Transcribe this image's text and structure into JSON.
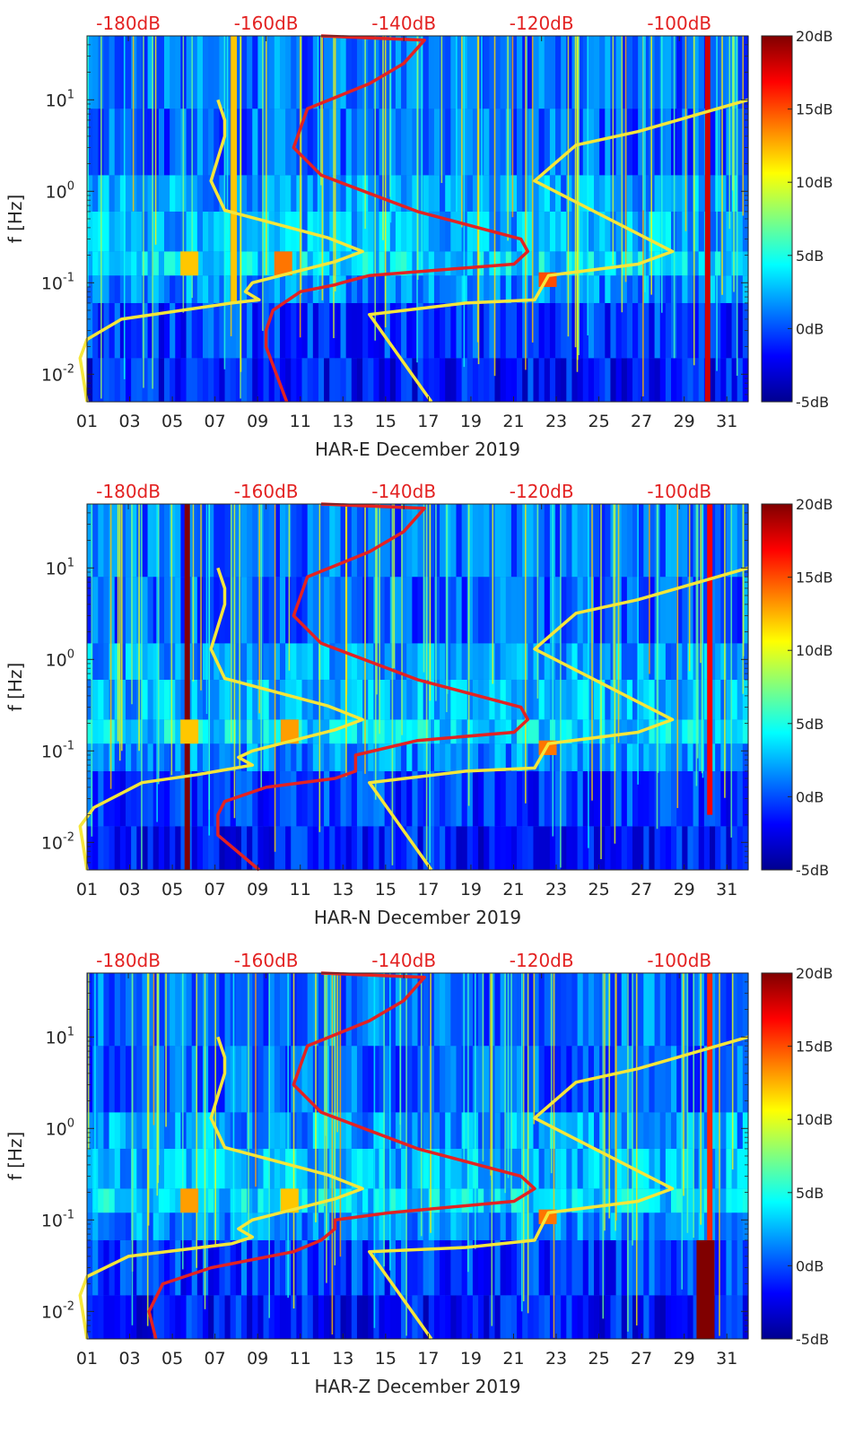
{
  "chart_data": [
    {
      "type": "heatmap",
      "title": "",
      "xlabel": "HAR-E December 2019",
      "ylabel": "f [Hz]",
      "x_ticks": [
        "01",
        "03",
        "05",
        "07",
        "09",
        "11",
        "13",
        "15",
        "17",
        "19",
        "21",
        "23",
        "25",
        "27",
        "29",
        "31"
      ],
      "x_range_days": [
        1,
        32
      ],
      "y_scale": "log",
      "y_range_hz": [
        0.005,
        50
      ],
      "y_ticks": [
        {
          "value": 0.01,
          "base": "10",
          "exp": "-2"
        },
        {
          "value": 0.1,
          "base": "10",
          "exp": "-1"
        },
        {
          "value": 1,
          "base": "10",
          "exp": "0"
        },
        {
          "value": 10,
          "base": "10",
          "exp": "1"
        }
      ],
      "top_axis": {
        "labels": [
          "-180dB",
          "-160dB",
          "-140dB",
          "-120dB",
          "-100dB"
        ],
        "values_db": [
          -180,
          -160,
          -140,
          -120,
          -100
        ],
        "range_db": [
          -186,
          -90
        ]
      },
      "colorbar": {
        "labels": [
          "20dB",
          "15dB",
          "10dB",
          "5dB",
          "0dB",
          "-5dB"
        ],
        "range_db": [
          -5,
          20
        ]
      },
      "heatmap_hotspots": [
        {
          "day": 30.1,
          "f_range": [
            0.005,
            50
          ],
          "db": 18
        },
        {
          "day": 7.9,
          "f_range": [
            0.06,
            50
          ],
          "db": 12
        },
        {
          "day": 5.8,
          "f_range": [
            0.12,
            0.22
          ],
          "db": 12
        },
        {
          "day": 10.2,
          "f_range": [
            0.12,
            0.22
          ],
          "db": 14
        },
        {
          "day": 22.6,
          "f_range": [
            0.09,
            0.13
          ],
          "db": 15
        }
      ],
      "series": [
        {
          "name": "yellow curve",
          "color": "#f5e63a",
          "points_db_hz": [
            [
              -186,
              0.005
            ],
            [
              -187,
              0.015
            ],
            [
              -186,
              0.024
            ],
            [
              -181,
              0.04
            ],
            [
              -165,
              0.06
            ],
            [
              -161,
              0.065
            ],
            [
              -163,
              0.08
            ],
            [
              -162,
              0.1
            ],
            [
              -150,
              0.17
            ],
            [
              -146,
              0.22
            ],
            [
              -151,
              0.31
            ],
            [
              -166,
              0.62
            ],
            [
              -168,
              1.3
            ],
            [
              -166,
              4
            ],
            [
              -166,
              6
            ],
            [
              -167,
              10
            ]
          ]
        },
        {
          "name": "yellow curve",
          "color": "#f5e63a",
          "points_db_hz": [
            [
              -136,
              0.005
            ],
            [
              -145,
              0.045
            ],
            [
              -131,
              0.06
            ],
            [
              -121,
              0.065
            ],
            [
              -119,
              0.12
            ],
            [
              -106,
              0.16
            ],
            [
              -101,
              0.22
            ],
            [
              -121,
              1.3
            ],
            [
              -115,
              3.2
            ],
            [
              -106,
              4.5
            ],
            [
              -90,
              10
            ]
          ]
        },
        {
          "name": "red curve",
          "color": "#e32222",
          "points_db_hz": [
            [
              -157,
              0.005
            ],
            [
              -160,
              0.02
            ],
            [
              -160,
              0.03
            ],
            [
              -159,
              0.05
            ],
            [
              -155,
              0.08
            ],
            [
              -150,
              0.095
            ],
            [
              -149,
              0.1
            ],
            [
              -145,
              0.12
            ],
            [
              -124,
              0.16
            ],
            [
              -122,
              0.22
            ],
            [
              -123,
              0.3
            ],
            [
              -138,
              0.6
            ],
            [
              -152,
              1.5
            ],
            [
              -156,
              3
            ],
            [
              -154,
              8
            ],
            [
              -145,
              15
            ],
            [
              -140,
              25
            ],
            [
              -137,
              45
            ],
            [
              -152,
              50
            ]
          ]
        }
      ]
    },
    {
      "type": "heatmap",
      "title": "",
      "xlabel": "HAR-N December 2019",
      "ylabel": "f [Hz]",
      "x_ticks": [
        "01",
        "03",
        "05",
        "07",
        "09",
        "11",
        "13",
        "15",
        "17",
        "19",
        "21",
        "23",
        "25",
        "27",
        "29",
        "31"
      ],
      "x_range_days": [
        1,
        32
      ],
      "y_scale": "log",
      "y_range_hz": [
        0.005,
        50
      ],
      "y_ticks": [
        {
          "value": 0.01,
          "base": "10",
          "exp": "-2"
        },
        {
          "value": 0.1,
          "base": "10",
          "exp": "-1"
        },
        {
          "value": 1,
          "base": "10",
          "exp": "0"
        },
        {
          "value": 10,
          "base": "10",
          "exp": "1"
        }
      ],
      "top_axis": {
        "labels": [
          "-180dB",
          "-160dB",
          "-140dB",
          "-120dB",
          "-100dB"
        ],
        "values_db": [
          -180,
          -160,
          -140,
          -120,
          -100
        ],
        "range_db": [
          -186,
          -90
        ]
      },
      "colorbar": {
        "labels": [
          "20dB",
          "15dB",
          "10dB",
          "5dB",
          "0dB",
          "-5dB"
        ],
        "range_db": [
          -5,
          20
        ]
      },
      "heatmap_hotspots": [
        {
          "day": 5.7,
          "f_range": [
            0.005,
            50
          ],
          "db": 20
        },
        {
          "day": 30.2,
          "f_range": [
            0.02,
            50
          ],
          "db": 17
        },
        {
          "day": 5.8,
          "f_range": [
            0.12,
            0.22
          ],
          "db": 12
        },
        {
          "day": 10.5,
          "f_range": [
            0.12,
            0.22
          ],
          "db": 13
        },
        {
          "day": 22.6,
          "f_range": [
            0.09,
            0.13
          ],
          "db": 14
        }
      ],
      "series": [
        {
          "name": "yellow curve",
          "color": "#f5e63a",
          "points_db_hz": [
            [
              -186,
              0.005
            ],
            [
              -187,
              0.015
            ],
            [
              -185,
              0.024
            ],
            [
              -178,
              0.045
            ],
            [
              -170,
              0.055
            ],
            [
              -162,
              0.07
            ],
            [
              -164,
              0.085
            ],
            [
              -162,
              0.1
            ],
            [
              -150,
              0.17
            ],
            [
              -146,
              0.22
            ],
            [
              -151,
              0.31
            ],
            [
              -166,
              0.62
            ],
            [
              -168,
              1.3
            ],
            [
              -166,
              4
            ],
            [
              -166,
              6
            ],
            [
              -167,
              10
            ]
          ]
        },
        {
          "name": "yellow curve",
          "color": "#f5e63a",
          "points_db_hz": [
            [
              -136,
              0.005
            ],
            [
              -145,
              0.045
            ],
            [
              -131,
              0.06
            ],
            [
              -121,
              0.065
            ],
            [
              -119,
              0.12
            ],
            [
              -106,
              0.16
            ],
            [
              -101,
              0.22
            ],
            [
              -121,
              1.3
            ],
            [
              -115,
              3.2
            ],
            [
              -106,
              4.5
            ],
            [
              -90,
              10
            ]
          ]
        },
        {
          "name": "red curve",
          "color": "#e32222",
          "points_db_hz": [
            [
              -161,
              0.005
            ],
            [
              -167,
              0.012
            ],
            [
              -167,
              0.02
            ],
            [
              -166,
              0.028
            ],
            [
              -160,
              0.04
            ],
            [
              -150,
              0.05
            ],
            [
              -147,
              0.06
            ],
            [
              -147,
              0.09
            ],
            [
              -138,
              0.13
            ],
            [
              -124,
              0.16
            ],
            [
              -122,
              0.22
            ],
            [
              -123,
              0.3
            ],
            [
              -138,
              0.6
            ],
            [
              -152,
              1.5
            ],
            [
              -156,
              3
            ],
            [
              -154,
              8
            ],
            [
              -145,
              15
            ],
            [
              -140,
              25
            ],
            [
              -137,
              45
            ],
            [
              -152,
              50
            ]
          ]
        }
      ]
    },
    {
      "type": "heatmap",
      "title": "",
      "xlabel": "HAR-Z December 2019",
      "ylabel": "f [Hz]",
      "x_ticks": [
        "01",
        "03",
        "05",
        "07",
        "09",
        "11",
        "13",
        "15",
        "17",
        "19",
        "21",
        "23",
        "25",
        "27",
        "29",
        "31"
      ],
      "x_range_days": [
        1,
        32
      ],
      "y_scale": "log",
      "y_range_hz": [
        0.005,
        50
      ],
      "y_ticks": [
        {
          "value": 0.01,
          "base": "10",
          "exp": "-2"
        },
        {
          "value": 0.1,
          "base": "10",
          "exp": "-1"
        },
        {
          "value": 1,
          "base": "10",
          "exp": "0"
        },
        {
          "value": 10,
          "base": "10",
          "exp": "1"
        }
      ],
      "top_axis": {
        "labels": [
          "-180dB",
          "-160dB",
          "-140dB",
          "-120dB",
          "-100dB"
        ],
        "values_db": [
          -180,
          -160,
          -140,
          -120,
          -100
        ],
        "range_db": [
          -186,
          -90
        ]
      },
      "colorbar": {
        "labels": [
          "20dB",
          "15dB",
          "10dB",
          "5dB",
          "0dB",
          "-5dB"
        ],
        "range_db": [
          -5,
          20
        ]
      },
      "heatmap_hotspots": [
        {
          "day": 30.0,
          "f_range": [
            0.005,
            0.06
          ],
          "db": 20
        },
        {
          "day": 30.2,
          "f_range": [
            0.06,
            50
          ],
          "db": 16
        },
        {
          "day": 5.8,
          "f_range": [
            0.12,
            0.22
          ],
          "db": 13
        },
        {
          "day": 10.5,
          "f_range": [
            0.12,
            0.22
          ],
          "db": 12
        },
        {
          "day": 22.6,
          "f_range": [
            0.09,
            0.13
          ],
          "db": 14
        }
      ],
      "series": [
        {
          "name": "yellow curve",
          "color": "#f5e63a",
          "points_db_hz": [
            [
              -186,
              0.005
            ],
            [
              -187,
              0.015
            ],
            [
              -186,
              0.024
            ],
            [
              -180,
              0.04
            ],
            [
              -165,
              0.055
            ],
            [
              -162,
              0.065
            ],
            [
              -164,
              0.08
            ],
            [
              -162,
              0.1
            ],
            [
              -150,
              0.17
            ],
            [
              -146,
              0.22
            ],
            [
              -151,
              0.31
            ],
            [
              -166,
              0.62
            ],
            [
              -168,
              1.3
            ],
            [
              -166,
              4
            ],
            [
              -166,
              6
            ],
            [
              -167,
              10
            ]
          ]
        },
        {
          "name": "yellow curve",
          "color": "#f5e63a",
          "points_db_hz": [
            [
              -136,
              0.005
            ],
            [
              -145,
              0.045
            ],
            [
              -131,
              0.05
            ],
            [
              -121,
              0.06
            ],
            [
              -119,
              0.12
            ],
            [
              -106,
              0.16
            ],
            [
              -101,
              0.22
            ],
            [
              -121,
              1.3
            ],
            [
              -115,
              3.2
            ],
            [
              -106,
              4.5
            ],
            [
              -90,
              10
            ]
          ]
        },
        {
          "name": "red curve",
          "color": "#e32222",
          "points_db_hz": [
            [
              -176,
              0.005
            ],
            [
              -177,
              0.01
            ],
            [
              -175,
              0.02
            ],
            [
              -168,
              0.03
            ],
            [
              -156,
              0.045
            ],
            [
              -152,
              0.06
            ],
            [
              -150,
              0.08
            ],
            [
              -150,
              0.1
            ],
            [
              -142,
              0.12
            ],
            [
              -124,
              0.16
            ],
            [
              -121,
              0.22
            ],
            [
              -123,
              0.3
            ],
            [
              -138,
              0.6
            ],
            [
              -152,
              1.5
            ],
            [
              -156,
              3
            ],
            [
              -154,
              8
            ],
            [
              -145,
              15
            ],
            [
              -140,
              25
            ],
            [
              -137,
              45
            ],
            [
              -152,
              50
            ]
          ]
        }
      ]
    }
  ]
}
